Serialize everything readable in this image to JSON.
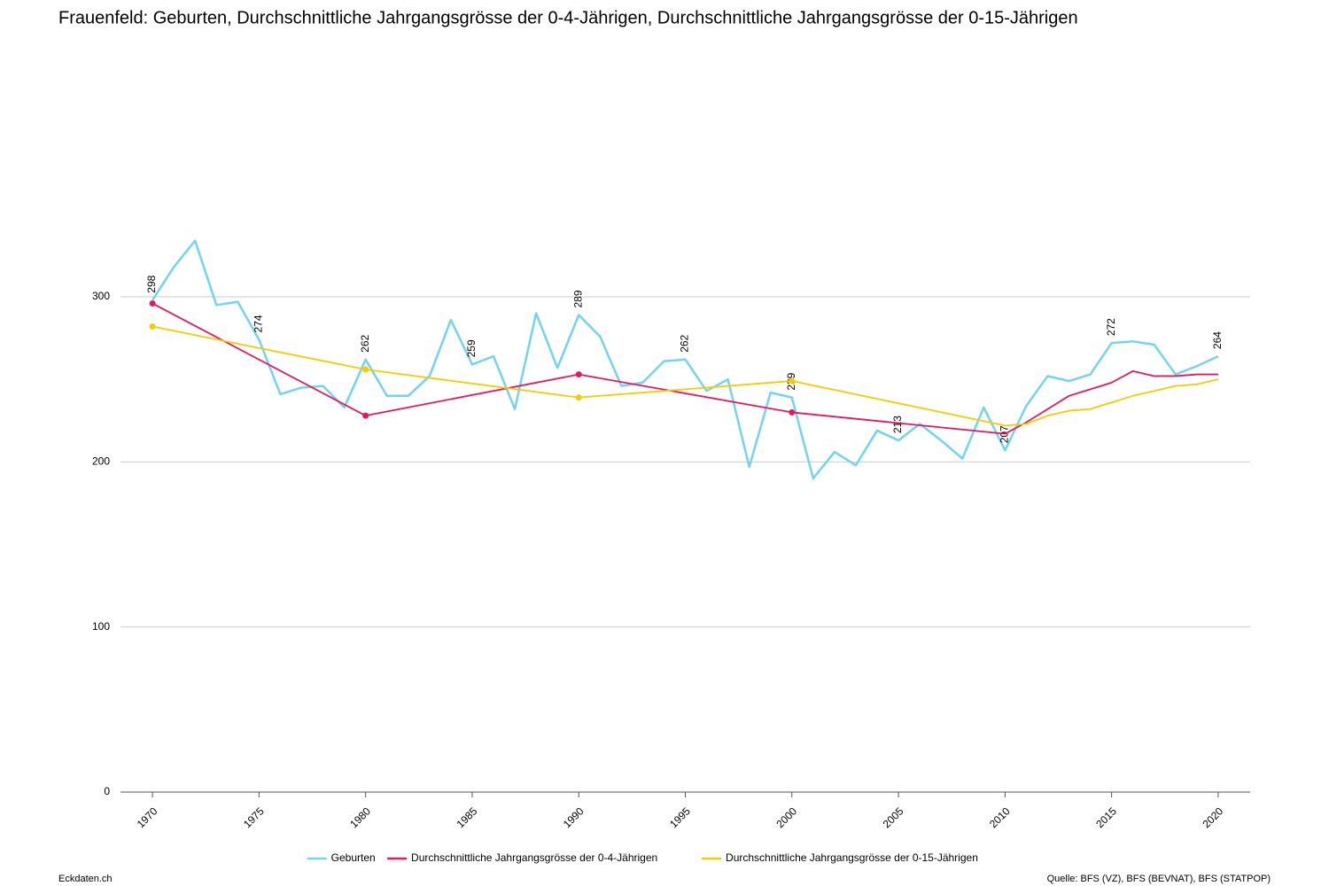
{
  "chart_data": {
    "type": "line",
    "title": "Frauenfeld: Geburten, Durchschnittliche Jahrgangsgrösse der 0-4-Jährigen, Durchschnittliche Jahrgangsgrösse der 0-15-Jährigen",
    "source": "Quelle: BFS (VZ), BFS (BEVNAT), BFS (STATPOP)",
    "footer": "Eckdaten.ch",
    "xlim": [
      1968.5,
      2021.5
    ],
    "xticks": [
      1970,
      1975,
      1980,
      1985,
      1990,
      1995,
      2000,
      2005,
      2010,
      2015,
      2020
    ],
    "ylim": [
      0,
      300
    ],
    "yticks": [
      0,
      100,
      200,
      300
    ],
    "grid": true,
    "legend": "bottom",
    "series": [
      {
        "name": "Geburten",
        "color": "#72d4f0",
        "x": [
          1970,
          1971,
          1972,
          1973,
          1974,
          1975,
          1976,
          1977,
          1978,
          1979,
          1980,
          1981,
          1982,
          1983,
          1984,
          1985,
          1986,
          1987,
          1988,
          1989,
          1990,
          1991,
          1992,
          1993,
          1994,
          1995,
          1996,
          1997,
          1998,
          1999,
          2000,
          2001,
          2002,
          2003,
          2004,
          2005,
          2006,
          2007,
          2008,
          2009,
          2010,
          2011,
          2012,
          2013,
          2014,
          2015,
          2016,
          2017,
          2018,
          2019,
          2020
        ],
        "values": [
          298,
          318,
          334,
          295,
          297,
          274,
          241,
          245,
          246,
          233,
          262,
          240,
          240,
          252,
          286,
          259,
          264,
          232,
          290,
          257,
          289,
          276,
          246,
          248,
          261,
          262,
          243,
          250,
          197,
          242,
          239,
          190,
          206,
          198,
          219,
          213,
          223,
          213,
          202,
          233,
          207,
          234,
          252,
          249,
          253,
          272,
          273,
          271,
          253,
          258,
          264
        ],
        "value_labels": [
          "298",
          null,
          null,
          null,
          null,
          "274",
          null,
          null,
          null,
          null,
          "262",
          null,
          null,
          null,
          null,
          "259",
          null,
          null,
          null,
          null,
          "289",
          null,
          null,
          null,
          null,
          "262",
          null,
          null,
          null,
          null,
          "239",
          null,
          null,
          null,
          null,
          "213",
          null,
          null,
          null,
          null,
          "207",
          null,
          null,
          null,
          null,
          "272",
          null,
          null,
          null,
          null,
          "264"
        ]
      },
      {
        "name": "Durchschnittliche Jahrgangsgrösse der 0-4-Jährigen",
        "color": "#e8175d",
        "x": [
          1970,
          1980,
          1990,
          2000,
          2010,
          2011,
          2012,
          2013,
          2014,
          2015,
          2016,
          2017,
          2018,
          2019,
          2020
        ],
        "values": [
          296,
          228,
          253,
          230,
          217,
          224,
          232,
          240,
          244,
          248,
          255,
          252,
          252,
          253,
          253
        ]
      },
      {
        "name": "Durchschnittliche Jahrgangsgrösse der 0-15-Jährigen",
        "color": "#f5cc00",
        "x": [
          1970,
          1980,
          1990,
          2000,
          2010,
          2011,
          2012,
          2013,
          2014,
          2015,
          2016,
          2017,
          2018,
          2019,
          2020
        ],
        "values": [
          282,
          256,
          239,
          249,
          222,
          223,
          228,
          231,
          232,
          236,
          240,
          243,
          246,
          247,
          250
        ]
      }
    ]
  }
}
